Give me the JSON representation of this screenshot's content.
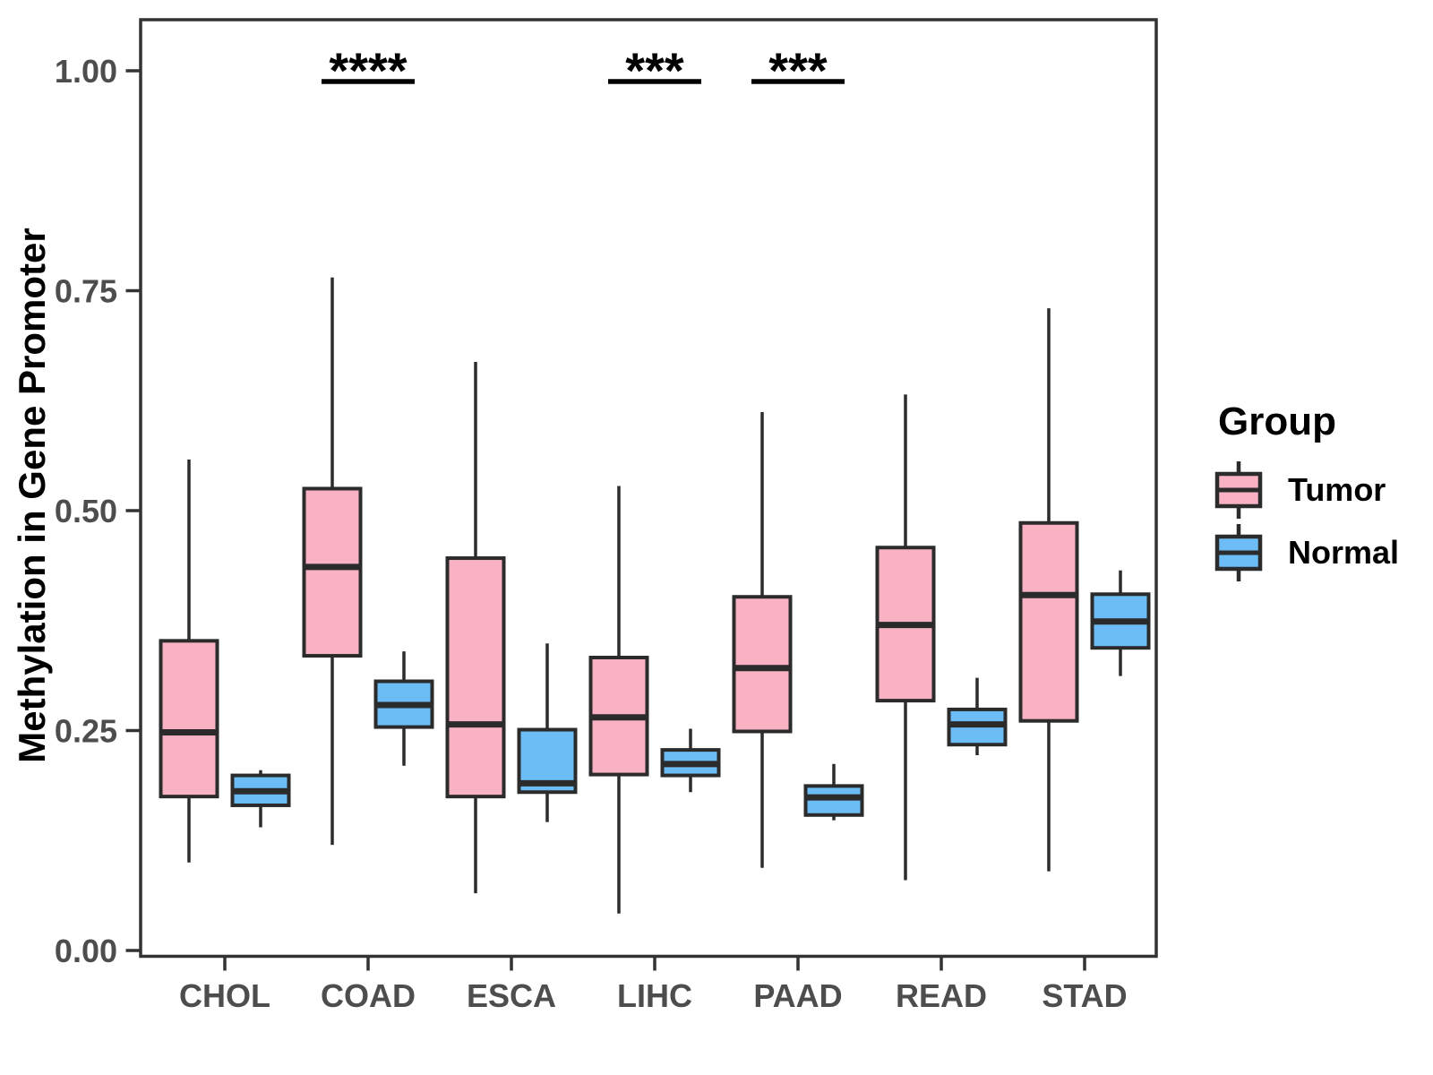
{
  "chart_data": {
    "type": "boxplot",
    "title": "",
    "xlabel": "",
    "ylabel": "Methylation in Gene Promoter",
    "ylim": [
      0.0,
      1.0
    ],
    "grid": false,
    "yticks": [
      {
        "value": 1.0,
        "label": "1.00"
      },
      {
        "value": 0.75,
        "label": "0.75"
      },
      {
        "value": 0.5,
        "label": "0.50"
      },
      {
        "value": 0.25,
        "label": "0.25"
      },
      {
        "value": 0.0,
        "label": "0.00"
      }
    ],
    "categories": [
      "CHOL",
      "COAD",
      "ESCA",
      "LIHC",
      "PAAD",
      "READ",
      "STAD"
    ],
    "groups": [
      {
        "name": "Tumor",
        "color": "#F9B1C4"
      },
      {
        "name": "Normal",
        "color": "#6CBCF5"
      }
    ],
    "series": [
      {
        "category": "CHOL",
        "tumor": {
          "whisker_low": 0.1,
          "q1": 0.175,
          "median": 0.248,
          "q3": 0.352,
          "whisker_high": 0.558
        },
        "normal": {
          "whisker_low": 0.14,
          "q1": 0.165,
          "median": 0.181,
          "q3": 0.199,
          "whisker_high": 0.205
        }
      },
      {
        "category": "COAD",
        "tumor": {
          "whisker_low": 0.12,
          "q1": 0.335,
          "median": 0.436,
          "q3": 0.525,
          "whisker_high": 0.765
        },
        "normal": {
          "whisker_low": 0.21,
          "q1": 0.254,
          "median": 0.279,
          "q3": 0.306,
          "whisker_high": 0.34
        }
      },
      {
        "category": "ESCA",
        "tumor": {
          "whisker_low": 0.065,
          "q1": 0.175,
          "median": 0.257,
          "q3": 0.446,
          "whisker_high": 0.669
        },
        "normal": {
          "whisker_low": 0.146,
          "q1": 0.18,
          "median": 0.19,
          "q3": 0.251,
          "whisker_high": 0.349
        }
      },
      {
        "category": "LIHC",
        "tumor": {
          "whisker_low": 0.042,
          "q1": 0.2,
          "median": 0.265,
          "q3": 0.333,
          "whisker_high": 0.528
        },
        "normal": {
          "whisker_low": 0.18,
          "q1": 0.199,
          "median": 0.212,
          "q3": 0.228,
          "whisker_high": 0.252
        }
      },
      {
        "category": "PAAD",
        "tumor": {
          "whisker_low": 0.094,
          "q1": 0.249,
          "median": 0.321,
          "q3": 0.402,
          "whisker_high": 0.612
        },
        "normal": {
          "whisker_low": 0.148,
          "q1": 0.154,
          "median": 0.174,
          "q3": 0.187,
          "whisker_high": 0.212
        }
      },
      {
        "category": "READ",
        "tumor": {
          "whisker_low": 0.08,
          "q1": 0.284,
          "median": 0.37,
          "q3": 0.458,
          "whisker_high": 0.632
        },
        "normal": {
          "whisker_low": 0.222,
          "q1": 0.234,
          "median": 0.257,
          "q3": 0.274,
          "whisker_high": 0.31
        }
      },
      {
        "category": "STAD",
        "tumor": {
          "whisker_low": 0.09,
          "q1": 0.261,
          "median": 0.404,
          "q3": 0.486,
          "whisker_high": 0.73
        },
        "normal": {
          "whisker_low": 0.312,
          "q1": 0.344,
          "median": 0.374,
          "q3": 0.405,
          "whisker_high": 0.432
        }
      }
    ],
    "significance": [
      {
        "category": "COAD",
        "label": "****"
      },
      {
        "category": "LIHC",
        "label": "***"
      },
      {
        "category": "PAAD",
        "label": "***"
      }
    ],
    "legend": {
      "title": "Group",
      "position": "right"
    },
    "style_colors": {
      "box_stroke": "#2B2B2B",
      "axis_stroke": "#333333",
      "tick_label": "#4D4D4D",
      "significance": "#000000"
    }
  }
}
